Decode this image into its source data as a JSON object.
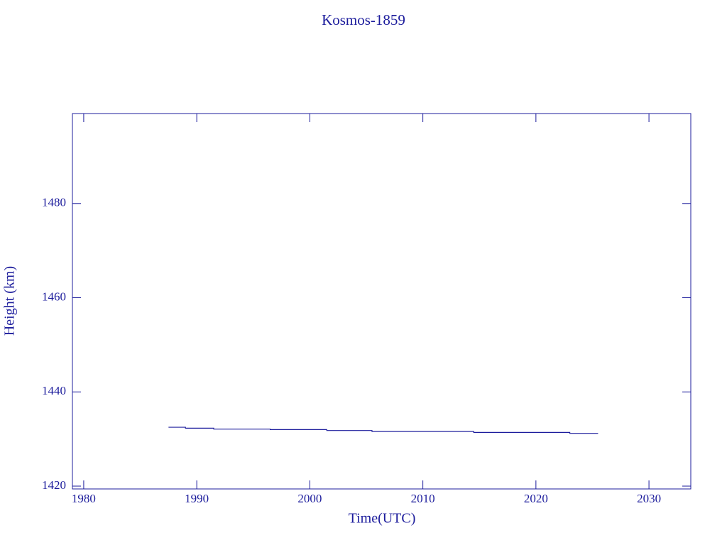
{
  "chart_data": {
    "type": "line",
    "step": "post",
    "title": "Kosmos-1859",
    "x_label": "Time(UTC)",
    "y_label": "Height (km)",
    "x": [
      1987.5,
      1989,
      1991.5,
      1996.5,
      2001.5,
      2005.5,
      2014.5,
      2018.5,
      2023,
      2025.5
    ],
    "series": [
      {
        "color": "#1c1c9c",
        "values": [
          1432.5,
          1432.3,
          1432.1,
          1432.0,
          1431.8,
          1431.6,
          1431.4,
          1431.4,
          1431.2,
          1431.2
        ]
      }
    ],
    "xlim": [
      1979,
      2033.7
    ],
    "xticks": [
      1980,
      1990,
      2000,
      2010,
      2020,
      2030
    ],
    "ylim": [
      1419.4,
      1499.1
    ],
    "yticks": [
      1420,
      1440,
      1460,
      1480
    ],
    "grid": false
  }
}
